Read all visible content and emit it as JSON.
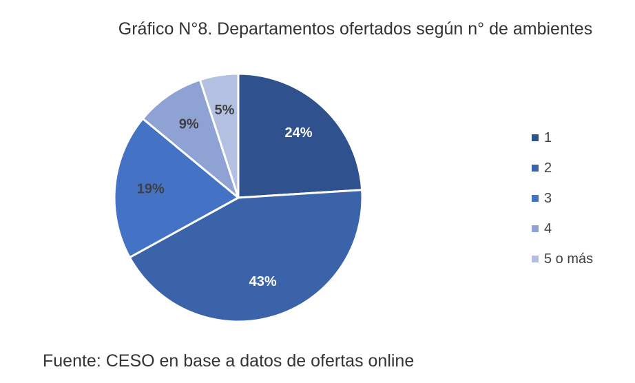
{
  "title": "Gráfico N°8. Departamentos ofertados según n° de ambientes",
  "source": "Fuente: CESO en base a datos de ofertas online",
  "chart_data": {
    "type": "pie",
    "title": "Gráfico N°8. Departamentos ofertados según n° de ambientes",
    "categories": [
      "1",
      "2",
      "3",
      "4",
      "5 o más"
    ],
    "values": [
      24,
      43,
      19,
      9,
      5
    ],
    "labels": [
      "24%",
      "43%",
      "19%",
      "9%",
      "5%"
    ],
    "colors": [
      "#2f528f",
      "#3a63aa",
      "#4472c4",
      "#8fa2d4",
      "#b4c0e1"
    ],
    "label_colors": [
      "#ffffff",
      "#ffffff",
      "#404040",
      "#404040",
      "#404040"
    ],
    "legend_position": "right"
  }
}
